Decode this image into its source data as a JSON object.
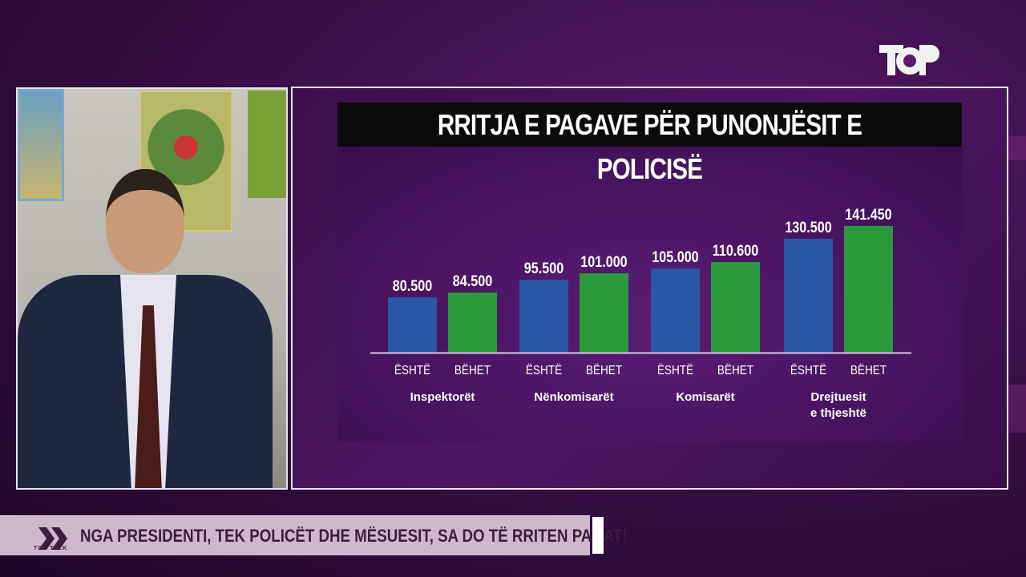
{
  "broadcaster_logo": "TOP",
  "ticker": {
    "show_logo": "TOP TALK",
    "headline": "NGA PRESIDENTI, TEK POLICËT DHE MËSUESIT, SA DO TË RRITEN PAGAT!"
  },
  "chart_data": {
    "type": "bar",
    "title": "RRITJA E PAGAVE PËR PUNONJËSIT E POLICISË",
    "categories": [
      "Inspektorët",
      "Nënkomisarët",
      "Komisarët",
      "Drejtuesit e thjeshtë"
    ],
    "series": [
      {
        "name": "ËSHTË",
        "color": "#2b56a3",
        "values": [
          80500,
          95500,
          105000,
          130500
        ],
        "labels": [
          "80.500",
          "95.500",
          "105.000",
          "130.500"
        ]
      },
      {
        "name": "BËHET",
        "color": "#2a9a3c",
        "values": [
          84500,
          101000,
          110600,
          141450
        ],
        "labels": [
          "84.500",
          "101.000",
          "110.600",
          "141.450"
        ]
      }
    ],
    "xlabel": "",
    "ylabel": "",
    "grid": false,
    "legend": "none"
  }
}
